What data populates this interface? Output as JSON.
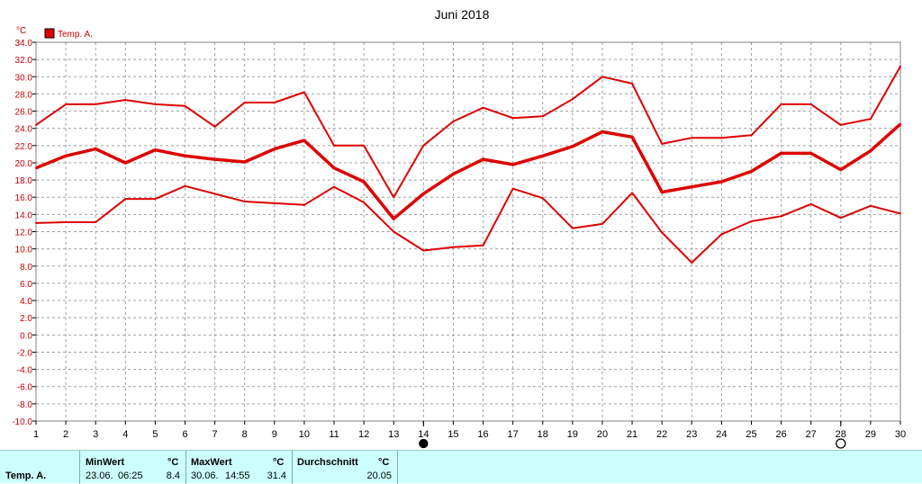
{
  "chart_data": {
    "type": "line",
    "title": "Juni 2018",
    "unit_label": "°C",
    "legend": {
      "label": "Temp. A.",
      "color": "#dd0000",
      "placement": "top-left"
    },
    "x": [
      1,
      2,
      3,
      4,
      5,
      6,
      7,
      8,
      9,
      10,
      11,
      12,
      13,
      14,
      15,
      16,
      17,
      18,
      19,
      20,
      21,
      22,
      23,
      24,
      25,
      26,
      27,
      28,
      29,
      30
    ],
    "xlim": [
      1,
      30
    ],
    "ylim": [
      -10,
      34
    ],
    "yticks": [
      "34.0",
      "32.0",
      "30.0",
      "28.0",
      "26.0",
      "24.0",
      "22.0",
      "20.0",
      "18.0",
      "16.0",
      "14.0",
      "12.0",
      "10.0",
      "8.0",
      "6.0",
      "4.0",
      "2.0",
      "0.0",
      "-2.0",
      "-4.0",
      "-6.0",
      "-8.0",
      "-10.0"
    ],
    "xticks": [
      "1",
      "2",
      "3",
      "4",
      "5",
      "6",
      "7",
      "8",
      "9",
      "10",
      "11",
      "12",
      "13",
      "14",
      "15",
      "16",
      "17",
      "18",
      "19",
      "20",
      "21",
      "22",
      "23",
      "24",
      "25",
      "26",
      "27",
      "28",
      "29",
      "30"
    ],
    "grid": true,
    "series": [
      {
        "line": "max",
        "values": [
          24.4,
          26.8,
          26.8,
          27.3,
          26.8,
          26.6,
          24.2,
          27.0,
          27.0,
          28.2,
          22.0,
          22.0,
          16.0,
          22.0,
          24.8,
          26.4,
          25.2,
          25.4,
          27.4,
          30.0,
          29.2,
          22.2,
          22.9,
          22.9,
          23.2,
          26.8,
          26.8,
          24.4,
          25.1,
          31.2
        ]
      },
      {
        "line": "avg",
        "values": [
          19.4,
          20.8,
          21.6,
          20.0,
          21.5,
          20.8,
          20.4,
          20.1,
          21.6,
          22.6,
          19.4,
          17.8,
          13.5,
          16.4,
          18.7,
          20.4,
          19.8,
          20.8,
          21.9,
          23.6,
          23.0,
          16.6,
          17.2,
          17.8,
          19.0,
          21.1,
          21.1,
          19.2,
          21.4,
          24.5
        ]
      },
      {
        "line": "min",
        "values": [
          13.0,
          13.1,
          13.1,
          15.8,
          15.8,
          17.3,
          16.4,
          15.5,
          15.3,
          15.1,
          17.2,
          15.4,
          12.0,
          9.8,
          10.2,
          10.4,
          17.0,
          15.9,
          12.4,
          12.9,
          16.5,
          11.9,
          8.4,
          11.7,
          13.2,
          13.8,
          15.2,
          13.6,
          15.0,
          14.1
        ]
      }
    ],
    "markers": [
      {
        "x": 14,
        "type": "filled-circle"
      },
      {
        "x": 28,
        "type": "open-circle"
      }
    ]
  },
  "stats": {
    "row_label": "Temp. A.",
    "min": {
      "header": "MinWert",
      "unit": "°C",
      "date": "23.06.",
      "time": "06:25",
      "value": "8.4"
    },
    "max": {
      "header": "MaxWert",
      "unit": "°C",
      "date": "30.06.",
      "time": "14:55",
      "value": "31.4"
    },
    "avg": {
      "header": "Durchschnitt",
      "unit": "°C",
      "value": "20.05"
    }
  }
}
